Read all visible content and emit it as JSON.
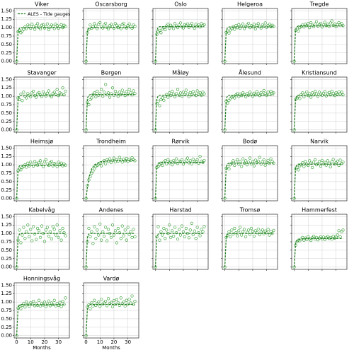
{
  "chart_data": {
    "type": "scatter",
    "xlabel": "Months",
    "fit_name": "ALES - Tide gauges",
    "fit_color": "#1e7b1e",
    "obs_color": "#2e9a2e",
    "grid": true,
    "legend": "upper left",
    "xlim": [
      -1.8,
      37.8
    ],
    "ylim": [
      -0.07,
      1.57
    ],
    "xticks": [
      0,
      10,
      20,
      30
    ],
    "yticks": [
      {
        "value": 0,
        "label": "0.00"
      },
      {
        "value": 0.25,
        "label": "0.25"
      },
      {
        "value": 0.5,
        "label": "0.50"
      },
      {
        "value": 0.75,
        "label": "0.75"
      },
      {
        "value": 1,
        "label": "1.00"
      },
      {
        "value": 1.25,
        "label": "1.25"
      },
      {
        "value": 1.5,
        "label": "1.50"
      }
    ],
    "x": [
      0,
      1,
      2,
      3,
      4,
      5,
      6,
      7,
      8,
      9,
      10,
      11,
      12,
      13,
      14,
      15,
      16,
      17,
      18,
      19,
      20,
      21,
      22,
      23,
      24,
      25,
      26,
      27,
      28,
      29,
      30,
      31,
      32,
      33,
      34,
      35
    ],
    "fit_x": [
      0,
      1,
      2,
      3,
      4,
      6,
      10,
      15,
      20,
      25,
      30,
      35
    ],
    "panels": [
      {
        "title": "Viker",
        "fit": [
          0,
          0.9,
          0.98,
          1,
          1,
          1,
          1,
          1,
          1,
          1,
          1,
          1
        ],
        "obs": [
          0,
          0.88,
          0.92,
          0.85,
          0.9,
          0.95,
          1.02,
          0.97,
          1.08,
          1.05,
          0.98,
          1.1,
          1.03,
          0.95,
          1.06,
          1.12,
          1.01,
          0.96,
          1.07,
          1.09,
          0.99,
          1.04,
          1.11,
          0.94,
          1.02,
          1.08,
          1.05,
          0.97,
          1.1,
          1.06,
          0.98,
          1.03,
          1.09,
          1.0,
          1.07,
          1.04
        ]
      },
      {
        "title": "Oscarsborg",
        "fit": [
          0,
          0.9,
          0.98,
          1,
          1,
          1,
          1,
          1,
          1,
          1,
          1,
          1
        ],
        "obs": [
          0,
          0.85,
          0.95,
          1.08,
          0.98,
          1.02,
          1.12,
          1.05,
          0.97,
          1.1,
          1.15,
          1.03,
          0.99,
          1.08,
          1.13,
          1.01,
          0.96,
          1.06,
          1.1,
          1.04,
          0.98,
          1.12,
          1.07,
          1.0,
          1.05,
          0.97,
          1.09,
          1.13,
          1.02,
          0.99,
          1.06,
          1.11,
          1.03,
          0.98,
          1.08,
          1.04
        ]
      },
      {
        "title": "Oslo",
        "fit": [
          0,
          0.93,
          1.01,
          1.03,
          1.03,
          1.03,
          1.03,
          1.03,
          1.03,
          1.03,
          1.03,
          1.03
        ],
        "obs": [
          0,
          0.8,
          0.88,
          0.92,
          0.85,
          0.96,
          1.0,
          0.94,
          1.05,
          1.1,
          0.98,
          1.07,
          1.03,
          0.97,
          1.12,
          1.05,
          1.0,
          1.08,
          1.14,
          1.02,
          0.99,
          1.09,
          1.06,
          1.11,
          1.01,
          1.07,
          1.13,
          1.04,
          0.98,
          1.1,
          1.05,
          1.08,
          1.02,
          1.12,
          1.06,
          1.09
        ]
      },
      {
        "title": "Helgeroa",
        "fit": [
          0,
          0.92,
          1,
          1.02,
          1.02,
          1.02,
          1.02,
          1.02,
          1.02,
          1.02,
          1.02,
          1.02
        ],
        "obs": [
          0,
          0.86,
          0.9,
          0.84,
          0.93,
          0.97,
          1.03,
          0.95,
          1.06,
          1.0,
          1.09,
          0.98,
          1.05,
          1.11,
          0.97,
          1.04,
          1.08,
          1.13,
          1.0,
          1.06,
          1.02,
          1.1,
          0.96,
          1.07,
          1.12,
          1.03,
          0.99,
          1.08,
          1.05,
          1.14,
          1.01,
          1.06,
          1.1,
          1.03,
          1.07,
          1.04
        ]
      },
      {
        "title": "Tregde",
        "fit": [
          0,
          0.95,
          1.03,
          1.05,
          1.05,
          1.05,
          1.05,
          1.05,
          1.05,
          1.05,
          1.05,
          1.05
        ],
        "obs": [
          0,
          0.92,
          0.96,
          0.9,
          1.0,
          1.04,
          1.08,
          1.02,
          1.1,
          1.06,
          1.12,
          1.0,
          1.15,
          1.07,
          1.03,
          1.11,
          1.18,
          1.05,
          1.09,
          1.13,
          1.02,
          1.08,
          1.16,
          1.06,
          1.1,
          1.04,
          1.14,
          1.2,
          1.07,
          1.11,
          1.03,
          1.09,
          1.15,
          1.08,
          1.12,
          1.06
        ]
      },
      {
        "title": "Stavanger",
        "fit": [
          0,
          0.93,
          1.01,
          1.03,
          1.03,
          1.03,
          1.03,
          1.03,
          1.03,
          1.03,
          1.03,
          1.03
        ],
        "obs": [
          0,
          0.95,
          0.9,
          1.06,
          0.87,
          1.12,
          1.0,
          0.95,
          1.08,
          1.03,
          0.98,
          1.1,
          1.15,
          1.02,
          0.97,
          1.07,
          1.11,
          1.04,
          0.99,
          1.13,
          1.06,
          1.01,
          1.09,
          1.16,
          1.03,
          0.98,
          1.08,
          1.12,
          1.05,
          1.2,
          1.02,
          1.1,
          1.07,
          1.25,
          1.04,
          1.15
        ]
      },
      {
        "title": "Bergen",
        "fit": [
          0,
          0.95,
          1.03,
          1.05,
          1.05,
          1.05,
          1.05,
          1.05,
          1.05,
          1.05,
          1.05,
          1.05
        ],
        "obs": [
          0,
          0.82,
          0.75,
          0.9,
          0.95,
          1.05,
          1.1,
          0.98,
          1.15,
          1.03,
          1.08,
          1.2,
          1.0,
          1.12,
          1.35,
          1.05,
          1.1,
          0.97,
          1.08,
          1.25,
          1.03,
          1.15,
          1.07,
          1.0,
          1.12,
          1.05,
          1.18,
          1.09,
          1.02,
          1.14,
          1.06,
          1.2,
          1.1,
          1.04,
          1.16,
          1.08
        ]
      },
      {
        "title": "Måløy",
        "fit": [
          0,
          0.93,
          1.01,
          1.03,
          1.03,
          1.03,
          1.03,
          1.03,
          1.03,
          1.03,
          1.03,
          1.03
        ],
        "obs": [
          0,
          0.78,
          0.85,
          0.72,
          0.9,
          0.95,
          0.88,
          1.0,
          1.05,
          0.97,
          1.1,
          1.02,
          1.15,
          1.06,
          0.98,
          1.08,
          1.2,
          1.03,
          1.1,
          1.0,
          1.12,
          1.05,
          1.18,
          1.07,
          0.99,
          1.11,
          1.04,
          1.14,
          1.08,
          1.02,
          1.16,
          1.06,
          1.1,
          1.03,
          1.12,
          1.07
        ]
      },
      {
        "title": "Ålesund",
        "fit": [
          0,
          0.93,
          1.01,
          1.03,
          1.03,
          1.03,
          1.03,
          1.03,
          1.03,
          1.03,
          1.03,
          1.03
        ],
        "obs": [
          0,
          0.85,
          0.8,
          0.88,
          0.93,
          0.97,
          1.0,
          0.95,
          1.04,
          1.08,
          0.99,
          1.06,
          1.02,
          1.1,
          1.05,
          0.98,
          1.08,
          1.03,
          1.12,
          1.06,
          1.0,
          1.09,
          1.04,
          1.14,
          1.07,
          1.02,
          1.11,
          1.05,
          1.17,
          1.08,
          1.03,
          1.12,
          1.06,
          1.15,
          1.09,
          1.1
        ]
      },
      {
        "title": "Kristiansund",
        "fit": [
          0,
          0.93,
          1.01,
          1.03,
          1.03,
          1.03,
          1.03,
          1.03,
          1.03,
          1.03,
          1.03,
          1.03
        ],
        "obs": [
          0,
          0.9,
          0.95,
          1.0,
          0.93,
          1.05,
          1.1,
          0.98,
          1.06,
          1.13,
          1.02,
          1.08,
          0.97,
          1.1,
          1.04,
          1.15,
          1.07,
          1.0,
          1.12,
          1.06,
          1.03,
          1.09,
          1.14,
          1.01,
          1.07,
          1.11,
          1.04,
          1.15,
          1.08,
          1.02,
          1.1,
          1.05,
          1.13,
          1.07,
          1.12,
          1.04
        ]
      },
      {
        "title": "Heimsjø",
        "fit": [
          0,
          0.89,
          0.97,
          0.99,
          0.99,
          0.99,
          0.99,
          0.99,
          0.99,
          0.99,
          0.99,
          0.99
        ],
        "obs": [
          0,
          0.82,
          0.88,
          0.85,
          0.92,
          0.95,
          1.0,
          0.93,
          1.05,
          0.97,
          1.08,
          1.02,
          0.96,
          1.1,
          1.04,
          0.99,
          1.07,
          1.12,
          1.01,
          0.95,
          1.09,
          1.15,
          1.03,
          0.98,
          1.06,
          1.1,
          0.97,
          1.04,
          1.02,
          0.95,
          1.08,
          1.0,
          1.05,
          0.97,
          1.03,
          0.99
        ]
      },
      {
        "title": "Trondheim",
        "fit": [
          0,
          0.35,
          0.6,
          0.77,
          0.88,
          1,
          1.09,
          1.11,
          1.12,
          1.12,
          1.12,
          1.12
        ],
        "obs": [
          0,
          0.38,
          0.55,
          0.65,
          0.75,
          0.82,
          0.88,
          0.95,
          0.98,
          1.02,
          1.05,
          0.97,
          1.08,
          1.12,
          1.03,
          1.15,
          1.1,
          1.18,
          1.07,
          1.13,
          1.2,
          1.09,
          1.15,
          1.11,
          1.22,
          1.14,
          1.08,
          1.17,
          1.12,
          1.19,
          1.1,
          1.16,
          1.13,
          1.21,
          1.15,
          1.12
        ]
      },
      {
        "title": "Rørvik",
        "fit": [
          0,
          0.96,
          1.05,
          1.07,
          1.07,
          1.07,
          1.07,
          1.07,
          1.07,
          1.07,
          1.07,
          1.07
        ],
        "obs": [
          0,
          0.92,
          0.95,
          1.0,
          1.05,
          0.98,
          1.08,
          1.12,
          1.03,
          1.15,
          1.06,
          1.1,
          1.0,
          1.13,
          1.07,
          1.18,
          1.04,
          1.11,
          1.09,
          1.15,
          1.02,
          1.08,
          1.14,
          1.2,
          1.06,
          1.12,
          1.03,
          1.17,
          1.1,
          1.08,
          1.15,
          1.05,
          1.25,
          1.11,
          1.07,
          1.13
        ]
      },
      {
        "title": "Bodø",
        "fit": [
          0,
          0.95,
          1.03,
          1.05,
          1.05,
          1.05,
          1.05,
          1.05,
          1.05,
          1.05,
          1.05,
          1.05
        ],
        "obs": [
          0,
          0.9,
          0.95,
          0.88,
          1.0,
          1.05,
          1.12,
          0.98,
          1.08,
          1.15,
          1.02,
          1.1,
          0.95,
          1.18,
          1.05,
          1.12,
          1.0,
          1.08,
          1.2,
          1.03,
          1.1,
          0.97,
          1.14,
          1.06,
          1.11,
          1.22,
          1.02,
          1.09,
          1.15,
          0.99,
          1.07,
          1.13,
          1.04,
          1.18,
          1.1,
          1.05
        ]
      },
      {
        "title": "Narvik",
        "fit": [
          0,
          0.92,
          1,
          1.02,
          1.02,
          1.02,
          1.02,
          1.02,
          1.02,
          1.02,
          1.02,
          1.02
        ],
        "obs": [
          0,
          0.88,
          0.93,
          0.85,
          0.97,
          1.0,
          1.06,
          0.95,
          1.1,
          1.02,
          0.98,
          1.12,
          1.05,
          0.92,
          1.08,
          1.15,
          1.0,
          1.04,
          1.1,
          0.96,
          1.13,
          1.03,
          1.07,
          0.99,
          1.12,
          1.05,
          0.94,
          1.09,
          1.16,
          1.02,
          1.06,
          1.11,
          0.98,
          1.14,
          1.04,
          1.08
        ]
      },
      {
        "title": "Kabelvåg",
        "fit": [
          0,
          0.9,
          0.98,
          1,
          1,
          1,
          1,
          1,
          1,
          1,
          1,
          1
        ],
        "obs": [
          0,
          0.8,
          1.1,
          0.72,
          0.95,
          1.18,
          0.85,
          1.05,
          1.25,
          0.9,
          1.12,
          0.78,
          1.2,
          0.98,
          0.82,
          1.15,
          1.08,
          0.88,
          1.22,
          1.0,
          0.76,
          1.1,
          1.18,
          0.92,
          1.05,
          0.84,
          1.2,
          1.12,
          0.95,
          1.25,
          0.88,
          1.08,
          0.8,
          1.15,
          1.02,
          0.93
        ]
      },
      {
        "title": "Andenes",
        "fit": [
          0,
          0.9,
          0.98,
          1,
          1,
          1,
          1,
          1,
          1,
          1,
          1,
          1
        ],
        "obs": [
          0,
          0.75,
          1.15,
          0.9,
          1.05,
          0.7,
          1.2,
          0.85,
          1.1,
          0.95,
          1.28,
          0.8,
          1.05,
          0.92,
          1.18,
          0.78,
          1.12,
          1.0,
          0.88,
          1.25,
          0.95,
          1.08,
          0.72,
          1.15,
          1.02,
          0.85,
          1.22,
          0.93,
          1.1,
          0.8,
          1.18,
          0.97,
          1.05,
          0.88,
          1.12,
          0.9
        ]
      },
      {
        "title": "Harstad",
        "fit": [
          0,
          0.9,
          0.98,
          1,
          1,
          1,
          1,
          1,
          1,
          1,
          1,
          1
        ],
        "obs": [
          0,
          0.9,
          1.2,
          0.8,
          1.05,
          0.95,
          1.15,
          0.85,
          1.1,
          1.0,
          1.25,
          0.88,
          1.08,
          0.92,
          1.18,
          1.02,
          0.83,
          1.12,
          0.95,
          1.22,
          1.05,
          0.9,
          1.15,
          1.0,
          0.87,
          1.1,
          1.3,
          0.96,
          1.07,
          0.85,
          1.18,
          1.02,
          0.93,
          1.12,
          1.05,
          1.2
        ]
      },
      {
        "title": "Tromsø",
        "fit": [
          0,
          0.9,
          0.98,
          1,
          1,
          1,
          1,
          1,
          1,
          1,
          1,
          1
        ],
        "obs": [
          0,
          0.88,
          0.95,
          1.05,
          0.9,
          1.1,
          0.98,
          1.15,
          1.02,
          0.93,
          1.08,
          1.18,
          0.95,
          1.05,
          1.12,
          0.9,
          1.03,
          1.1,
          0.97,
          1.15,
          1.06,
          0.92,
          1.08,
          1.02,
          1.13,
          0.96,
          1.05,
          1.1,
          0.99,
          1.07,
          1.02,
          1.12,
          0.95,
          1.06,
          1.0,
          1.09
        ]
      },
      {
        "title": "Hammerfest",
        "fit": [
          0,
          0.7,
          0.8,
          0.82,
          0.83,
          0.84,
          0.85,
          0.85,
          0.85,
          0.85,
          0.85,
          0.85
        ],
        "obs": [
          0,
          0.65,
          0.75,
          0.8,
          0.78,
          0.83,
          0.88,
          0.8,
          0.86,
          0.82,
          0.9,
          0.84,
          0.79,
          0.87,
          0.92,
          0.83,
          0.88,
          0.81,
          0.86,
          0.9,
          0.84,
          0.89,
          0.82,
          0.87,
          0.91,
          0.85,
          0.88,
          0.83,
          0.92,
          0.86,
          0.89,
          0.95,
          1.08,
          0.9,
          1.05,
          1.1
        ]
      },
      {
        "title": "Honningsvåg",
        "fit": [
          0,
          0.83,
          0.9,
          0.92,
          0.92,
          0.92,
          0.92,
          0.92,
          0.92,
          0.92,
          0.92,
          0.92
        ],
        "obs": [
          0,
          0.82,
          0.88,
          0.8,
          0.9,
          0.95,
          0.85,
          1.0,
          0.92,
          0.87,
          0.98,
          0.93,
          1.02,
          0.89,
          0.95,
          0.9,
          1.05,
          0.88,
          0.96,
          0.91,
          1.0,
          0.86,
          0.94,
          1.03,
          0.89,
          0.97,
          0.92,
          1.05,
          0.88,
          0.95,
          0.9,
          0.99,
          0.86,
          1.02,
          0.93,
          1.12
        ]
      },
      {
        "title": "Vardø",
        "fit": [
          0,
          0.84,
          0.91,
          0.93,
          0.93,
          0.93,
          0.93,
          0.93,
          0.93,
          0.93,
          0.93,
          0.93
        ],
        "obs": [
          0,
          0.85,
          0.92,
          0.8,
          0.98,
          0.88,
          1.05,
          0.9,
          0.95,
          1.0,
          0.87,
          1.08,
          0.93,
          0.97,
          1.02,
          0.89,
          1.1,
          0.95,
          0.99,
          0.86,
          1.04,
          0.92,
          1.07,
          0.98,
          0.9,
          1.12,
          0.95,
          1.0,
          0.88,
          1.05,
          0.93,
          1.08,
          0.97,
          1.18,
          0.92,
          1.02
        ]
      }
    ]
  }
}
